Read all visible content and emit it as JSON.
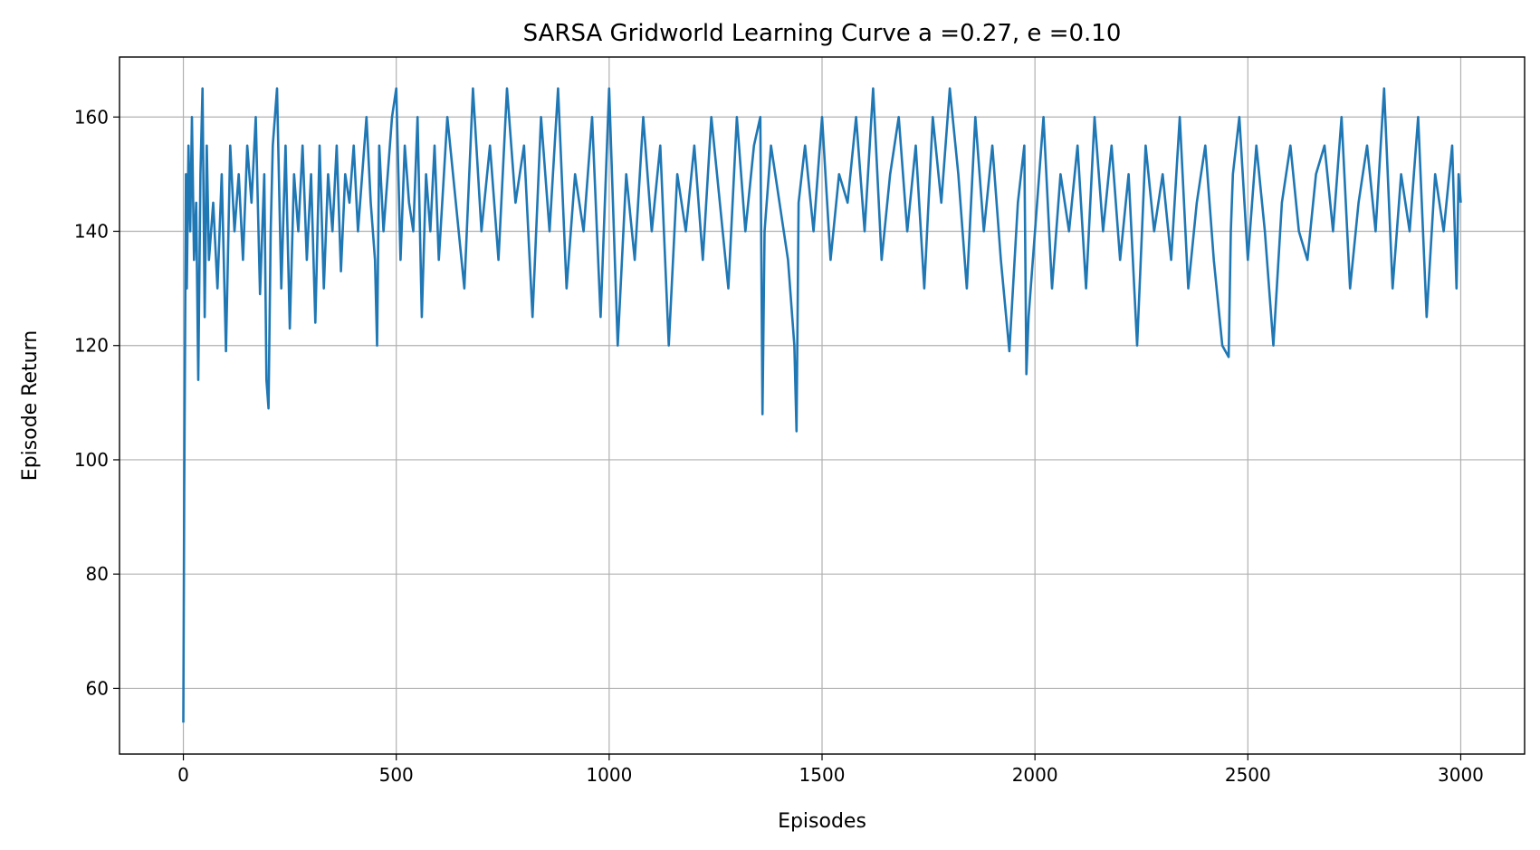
{
  "chart_data": {
    "type": "line",
    "title": "SARSA Gridworld Learning Curve a =0.27, e =0.10",
    "xlabel": "Episodes",
    "ylabel": "Episode Return",
    "xlim": [
      -150,
      3150
    ],
    "ylim": [
      48.5,
      170.5
    ],
    "xticks": [
      0,
      500,
      1000,
      1500,
      2000,
      2500,
      3000
    ],
    "yticks": [
      60,
      80,
      100,
      120,
      140,
      160
    ],
    "grid": true,
    "legend": "none",
    "colors": {
      "line": "#1f77b4",
      "grid": "#b0b0b0"
    },
    "series": [
      {
        "x": [
          0,
          2,
          4,
          6,
          8,
          12,
          16,
          20,
          25,
          30,
          35,
          40,
          45,
          50,
          55,
          60,
          70,
          80,
          90,
          100,
          110,
          120,
          130,
          140,
          150,
          160,
          170,
          180,
          190,
          195,
          200,
          205,
          210,
          220,
          230,
          240,
          250,
          260,
          270,
          280,
          290,
          300,
          310,
          320,
          330,
          340,
          350,
          360,
          370,
          380,
          390,
          400,
          410,
          420,
          430,
          440,
          450,
          455,
          460,
          470,
          480,
          490,
          500,
          510,
          520,
          530,
          540,
          550,
          560,
          570,
          580,
          590,
          600,
          620,
          640,
          660,
          680,
          700,
          720,
          740,
          760,
          780,
          800,
          820,
          840,
          860,
          880,
          900,
          920,
          940,
          960,
          980,
          1000,
          1020,
          1040,
          1060,
          1080,
          1100,
          1120,
          1140,
          1160,
          1180,
          1200,
          1220,
          1240,
          1260,
          1280,
          1300,
          1320,
          1340,
          1355,
          1360,
          1365,
          1380,
          1400,
          1420,
          1435,
          1440,
          1445,
          1460,
          1480,
          1500,
          1520,
          1540,
          1560,
          1580,
          1600,
          1620,
          1640,
          1660,
          1680,
          1700,
          1720,
          1740,
          1760,
          1780,
          1800,
          1820,
          1840,
          1860,
          1880,
          1900,
          1920,
          1940,
          1960,
          1975,
          1980,
          1985,
          2000,
          2020,
          2040,
          2060,
          2080,
          2100,
          2120,
          2140,
          2160,
          2180,
          2200,
          2220,
          2240,
          2260,
          2280,
          2300,
          2320,
          2340,
          2360,
          2380,
          2400,
          2420,
          2440,
          2455,
          2460,
          2465,
          2480,
          2500,
          2520,
          2540,
          2560,
          2580,
          2600,
          2620,
          2640,
          2660,
          2680,
          2700,
          2720,
          2740,
          2760,
          2780,
          2800,
          2820,
          2840,
          2860,
          2880,
          2900,
          2920,
          2940,
          2960,
          2980,
          2990,
          2995,
          3000
        ],
        "y": [
          54,
          95,
          120,
          150,
          130,
          155,
          140,
          160,
          135,
          145,
          114,
          150,
          165,
          125,
          155,
          135,
          145,
          130,
          150,
          119,
          155,
          140,
          150,
          135,
          155,
          145,
          160,
          129,
          150,
          114,
          109,
          140,
          155,
          165,
          130,
          155,
          123,
          150,
          140,
          155,
          135,
          150,
          124,
          155,
          130,
          150,
          140,
          155,
          133,
          150,
          145,
          155,
          140,
          150,
          160,
          145,
          135,
          120,
          155,
          140,
          150,
          160,
          165,
          135,
          155,
          145,
          140,
          160,
          125,
          150,
          140,
          155,
          135,
          160,
          145,
          130,
          165,
          140,
          155,
          135,
          165,
          145,
          155,
          125,
          160,
          140,
          165,
          130,
          150,
          140,
          160,
          125,
          165,
          120,
          150,
          135,
          160,
          140,
          155,
          120,
          150,
          140,
          155,
          135,
          160,
          145,
          130,
          160,
          140,
          155,
          160,
          108,
          140,
          155,
          145,
          135,
          120,
          105,
          145,
          155,
          140,
          160,
          135,
          150,
          145,
          160,
          140,
          165,
          135,
          150,
          160,
          140,
          155,
          130,
          160,
          145,
          165,
          150,
          130,
          160,
          140,
          155,
          135,
          119,
          145,
          155,
          115,
          125,
          140,
          160,
          130,
          150,
          140,
          155,
          130,
          160,
          140,
          155,
          135,
          150,
          120,
          155,
          140,
          150,
          135,
          160,
          130,
          145,
          155,
          135,
          120,
          118,
          140,
          150,
          160,
          135,
          155,
          140,
          120,
          145,
          155,
          140,
          135,
          150,
          155,
          140,
          160,
          130,
          145,
          155,
          140,
          165,
          130,
          150,
          140,
          160,
          125,
          150,
          140,
          155,
          130,
          150,
          145
        ]
      }
    ]
  }
}
